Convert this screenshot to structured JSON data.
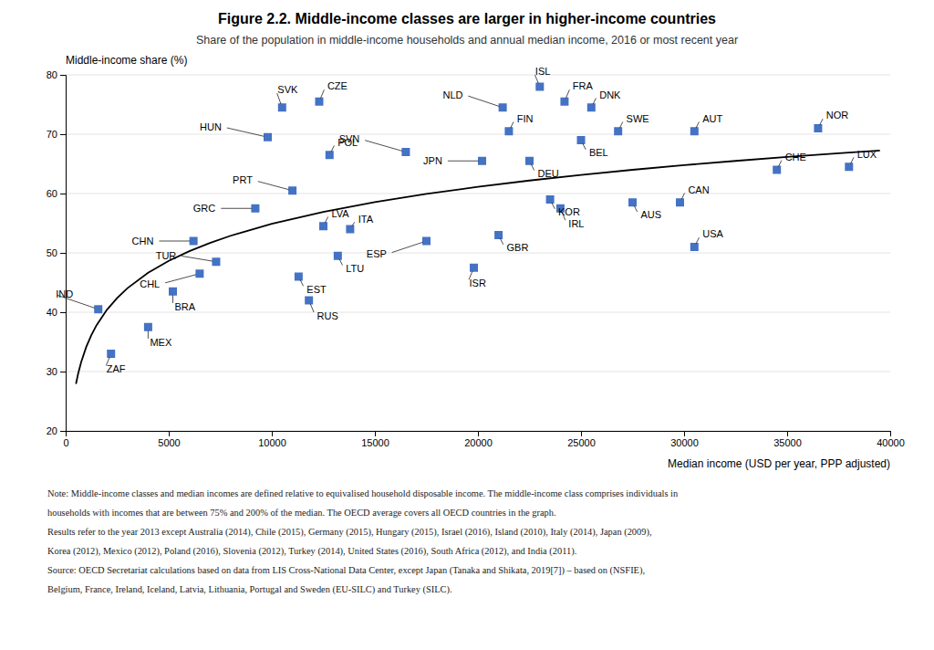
{
  "chart_data": {
    "type": "scatter",
    "title": "Figure 2.2. Middle-income classes are larger in higher-income countries",
    "subtitle": "Share of the population in middle-income households and annual median income, 2016 or most recent year",
    "y_label": "Middle-income share (%)",
    "x_label": "Median income (USD per year, PPP adjusted)",
    "xlim": [
      0,
      40000
    ],
    "ylim": [
      20,
      80
    ],
    "xticks": [
      0,
      5000,
      10000,
      15000,
      20000,
      25000,
      30000,
      35000,
      40000
    ],
    "yticks": [
      20,
      30,
      40,
      50,
      60,
      70,
      80
    ],
    "grid": "y",
    "series": [
      {
        "type": "scatter",
        "marker": "square",
        "color": "#4472C4",
        "labels": [
          "IND",
          "ZAF",
          "MEX",
          "BRA",
          "CHN",
          "CHL",
          "TUR",
          "GRC",
          "PRT",
          "HUN",
          "SVK",
          "CZE",
          "EST",
          "RUS",
          "LVA",
          "LTU",
          "POL",
          "ITA",
          "SVN",
          "ESP",
          "ISR",
          "JPN",
          "GBR",
          "FIN",
          "NLD",
          "DEU",
          "KOR",
          "ISL",
          "FRA",
          "DNK",
          "BEL",
          "IRL",
          "SWE",
          "AUS",
          "AUT",
          "CAN",
          "USA",
          "CHE",
          "NOR",
          "LUX"
        ],
        "x": [
          1581,
          2200,
          4000,
          5200,
          6200,
          6500,
          7300,
          9200,
          11000,
          9800,
          10500,
          12300,
          11300,
          11800,
          12500,
          13200,
          12800,
          13800,
          16500,
          17500,
          19800,
          20200,
          21000,
          21500,
          21200,
          22500,
          23500,
          23000,
          24200,
          25500,
          25000,
          24000,
          26800,
          27500,
          30500,
          29800,
          30500,
          34500,
          36500,
          38000
        ],
        "values": [
          40.5,
          33.0,
          37.5,
          43.5,
          52.0,
          46.5,
          48.5,
          57.5,
          60.5,
          69.5,
          74.5,
          75.5,
          46.0,
          42.0,
          54.5,
          49.5,
          66.5,
          54.0,
          67.0,
          52.0,
          47.5,
          65.5,
          53.0,
          70.5,
          74.5,
          65.5,
          59.0,
          78.0,
          75.5,
          74.5,
          69.0,
          57.5,
          70.5,
          58.5,
          70.5,
          58.5,
          51.0,
          64.0,
          71.0,
          64.5
        ]
      },
      {
        "type": "line",
        "color": "black",
        "x": [
          500,
          600,
          750,
          1000,
          1250,
          1500,
          2000,
          2500,
          3000,
          4000,
          5000,
          6000,
          7000,
          8000,
          10000,
          12500,
          15000,
          17500,
          20000,
          22500,
          25000,
          27500,
          30000,
          32500,
          35000,
          37500,
          39500
        ],
        "values": [
          27.9315,
          29.5724,
          31.5807,
          34.1698,
          36.1781,
          37.819,
          40.4081,
          42.4164,
          44.0573,
          46.6465,
          48.6547,
          50.2956,
          51.683,
          52.8848,
          54.8931,
          56.9014,
          58.5422,
          59.9296,
          61.1314,
          62.1914,
          63.1397,
          63.9975,
          64.7806,
          65.501,
          66.1679,
          66.7889,
          67.2565
        ]
      }
    ],
    "notes": [
      "Note: Middle-income classes and median incomes are defined relative to equivalised household disposable income. The middle-income class comprises individuals in",
      "households with incomes that are between 75% and 200% of the median. The OECD average covers all OECD countries in the graph.",
      "Results refer to the year 2013 except Australia (2014), Chile (2015), Germany (2015), Hungary (2015), Israel (2016), Island (2010), Italy (2014), Japan (2009),",
      "Korea (2012), Mexico (2012), Poland (2016), Slovenia (2012), Turkey (2014), United States (2016), South Africa (2012), and India (2011).",
      "Source: OECD Secretariat calculations based on data from LIS Cross-National Data Center, except Japan (Tanaka and Shikata, 2019[7]) – based on (NSFIE),",
      "Belgium, France, Ireland, Iceland, Latvia, Lithuania, Portugal and Sweden (EU-SILC) and Turkey (SILC)."
    ]
  }
}
